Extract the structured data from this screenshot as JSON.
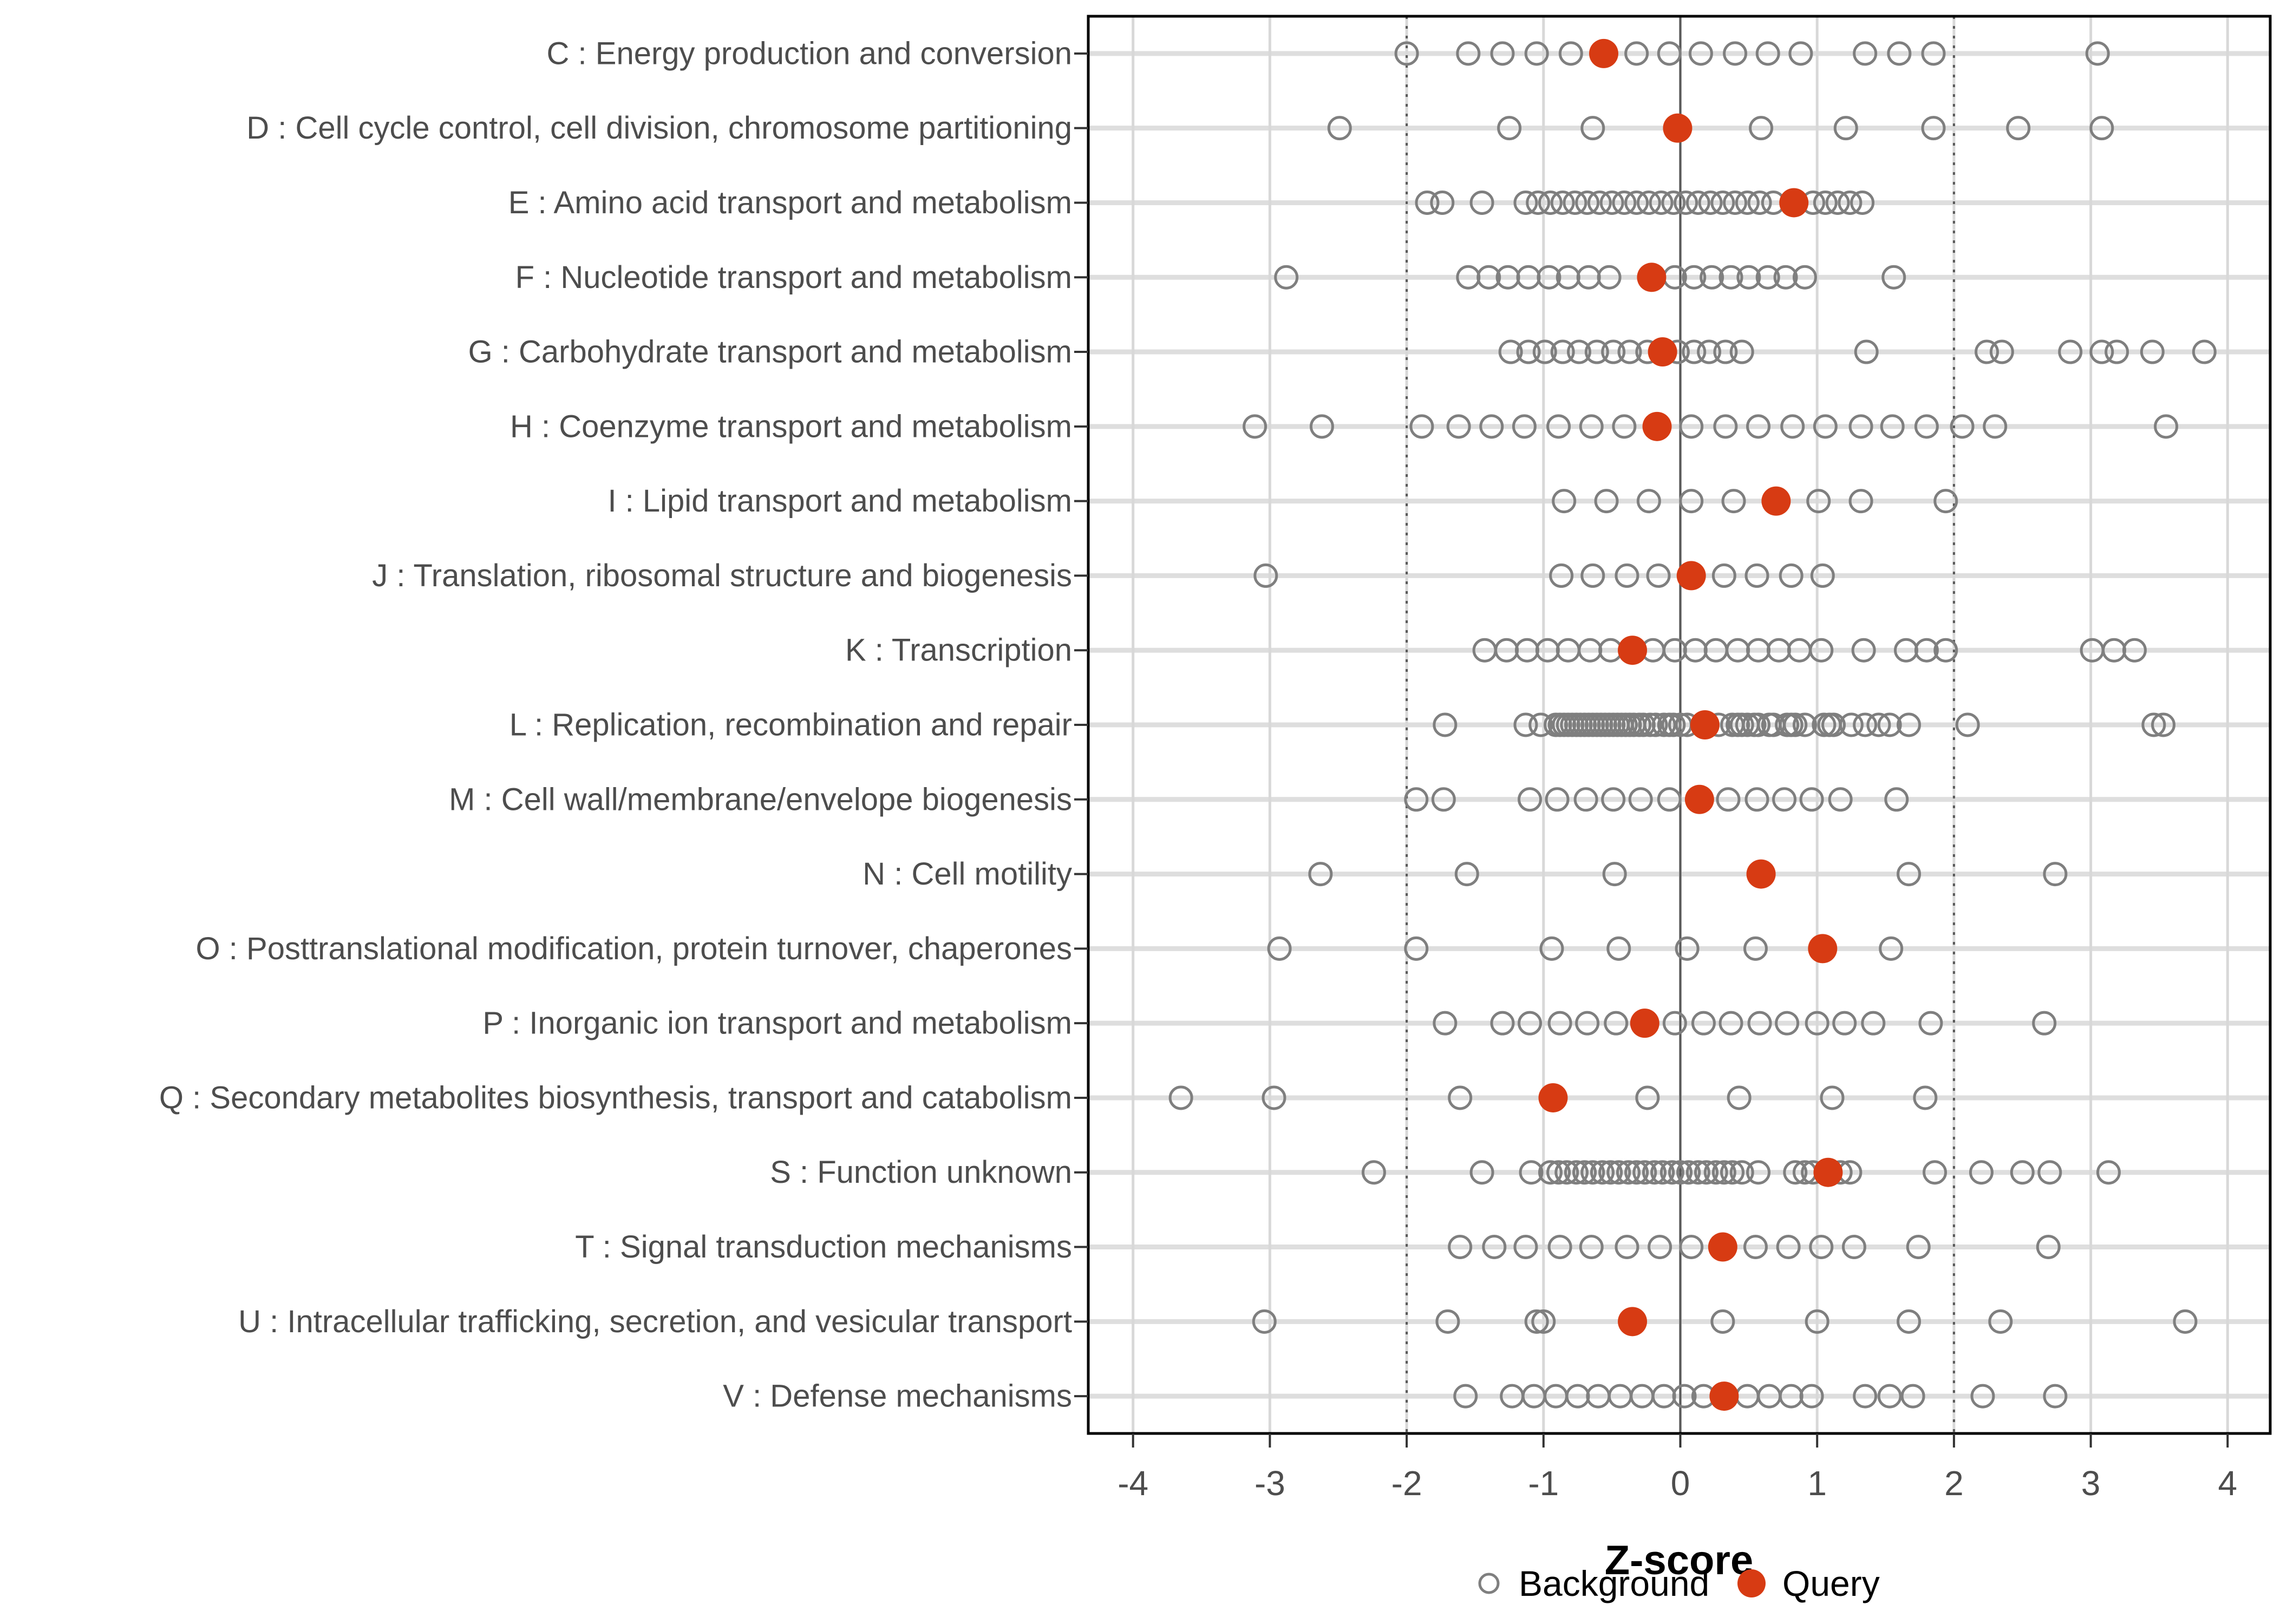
{
  "colors": {
    "query_red": "#D73B13",
    "background_point_gray": "#7F7F7F",
    "row_grid_gray": "#DEDEDE",
    "minor_grid_gray": "#D8D8D8",
    "reference_line_gray": "#595959",
    "axis_text_gray": "#4D4D4D",
    "panel_border_black": "#000000"
  },
  "chart_data": {
    "type": "scatter",
    "title": "",
    "xlabel": "Z-score",
    "ylabel": "",
    "xlim": [
      -4.33,
      4.31
    ],
    "x_ticks": [
      -4,
      -3,
      -2,
      -1,
      0,
      1,
      2,
      3,
      4
    ],
    "grid": true,
    "reference_lines": {
      "solid_at": 0,
      "dotted_at": [
        -2,
        2
      ]
    },
    "legend": [
      "Background",
      "Query"
    ],
    "legend_position": "bottom",
    "series_note": "background = open gray circles, query = filled red circle, one row per COG category",
    "categories": [
      {
        "code": "C",
        "label": "C : Energy production and conversion",
        "background": [
          -2.0,
          -1.55,
          -1.3,
          -1.05,
          -0.8,
          -0.32,
          -0.08,
          0.15,
          0.4,
          0.64,
          0.88,
          1.35,
          1.6,
          1.85,
          3.05
        ],
        "query": -0.56
      },
      {
        "code": "D",
        "label": "D : Cell cycle control, cell division, chromosome partitioning",
        "background": [
          -2.49,
          -1.25,
          -0.64,
          0.59,
          1.21,
          1.85,
          2.47,
          3.08
        ],
        "query": -0.02
      },
      {
        "code": "E",
        "label": "E : Amino acid transport and metabolism",
        "background": [
          -1.85,
          -1.74,
          -1.45,
          -1.13,
          -1.04,
          -0.95,
          -0.86,
          -0.77,
          -0.68,
          -0.59,
          -0.5,
          -0.41,
          -0.32,
          -0.23,
          -0.14,
          -0.05,
          0.04,
          0.13,
          0.22,
          0.31,
          0.4,
          0.49,
          0.58,
          0.68,
          0.97,
          1.06,
          1.15,
          1.24,
          1.33
        ],
        "query": 0.83
      },
      {
        "code": "F",
        "label": "F : Nucleotide transport and metabolism",
        "background": [
          -2.88,
          -1.55,
          -1.4,
          -1.26,
          -1.11,
          -0.96,
          -0.82,
          -0.67,
          -0.52,
          -0.04,
          0.1,
          0.23,
          0.37,
          0.5,
          0.64,
          0.77,
          0.91,
          1.56
        ],
        "query": -0.21
      },
      {
        "code": "G",
        "label": "G : Carbohydrate transport and metabolism",
        "background": [
          -1.24,
          -1.11,
          -0.99,
          -0.86,
          -0.74,
          -0.61,
          -0.49,
          -0.37,
          -0.24,
          -0.02,
          0.1,
          0.21,
          0.33,
          0.45,
          1.36,
          2.24,
          2.35,
          2.85,
          3.08,
          3.19,
          3.45,
          3.83
        ],
        "query": -0.13
      },
      {
        "code": "H",
        "label": "H : Coenzyme transport and metabolism",
        "background": [
          -3.11,
          -2.62,
          -1.89,
          -1.62,
          -1.38,
          -1.14,
          -0.89,
          -0.65,
          -0.41,
          0.08,
          0.33,
          0.57,
          0.82,
          1.06,
          1.32,
          1.55,
          1.8,
          2.06,
          2.3,
          3.55
        ],
        "query": -0.17
      },
      {
        "code": "I",
        "label": "I : Lipid transport and metabolism",
        "background": [
          -0.85,
          -0.54,
          -0.23,
          0.08,
          0.39,
          1.01,
          1.32,
          1.94
        ],
        "query": 0.7
      },
      {
        "code": "J",
        "label": "J : Translation, ribosomal structure and biogenesis",
        "background": [
          -3.03,
          -0.87,
          -0.64,
          -0.39,
          -0.16,
          0.32,
          0.56,
          0.81,
          1.04
        ],
        "query": 0.08
      },
      {
        "code": "K",
        "label": "K : Transcription",
        "background": [
          -1.43,
          -1.27,
          -1.12,
          -0.97,
          -0.82,
          -0.66,
          -0.51,
          -0.2,
          -0.04,
          0.11,
          0.26,
          0.42,
          0.57,
          0.72,
          0.87,
          1.03,
          1.34,
          1.65,
          1.8,
          1.94,
          3.01,
          3.17,
          3.32
        ],
        "query": -0.35
      },
      {
        "code": "L",
        "label": "L : Replication, recombination and repair",
        "background": [
          -1.72,
          -1.13,
          -1.02,
          -0.91,
          -0.88,
          -0.85,
          -0.82,
          -0.79,
          -0.76,
          -0.73,
          -0.7,
          -0.67,
          -0.64,
          -0.61,
          -0.58,
          -0.55,
          -0.52,
          -0.49,
          -0.46,
          -0.43,
          -0.4,
          -0.37,
          -0.34,
          -0.3,
          -0.27,
          -0.22,
          -0.18,
          -0.12,
          -0.08,
          -0.05,
          0.0,
          0.05,
          0.28,
          0.38,
          0.42,
          0.45,
          0.49,
          0.54,
          0.57,
          0.65,
          0.68,
          0.78,
          0.81,
          0.84,
          0.91,
          1.05,
          1.09,
          1.12,
          1.25,
          1.35,
          1.45,
          1.53,
          1.67,
          2.1,
          3.46,
          3.53
        ],
        "query": 0.18
      },
      {
        "code": "M",
        "label": "M : Cell wall/membrane/envelope biogenesis",
        "background": [
          -1.93,
          -1.73,
          -1.1,
          -0.9,
          -0.69,
          -0.49,
          -0.29,
          -0.08,
          0.35,
          0.56,
          0.76,
          0.96,
          1.17,
          1.58
        ],
        "query": 0.14
      },
      {
        "code": "N",
        "label": "N : Cell motility",
        "background": [
          -2.63,
          -1.56,
          -0.48,
          1.67,
          2.74
        ],
        "query": 0.59
      },
      {
        "code": "O",
        "label": "O : Posttranslational modification, protein turnover, chaperones",
        "background": [
          -2.93,
          -1.93,
          -0.94,
          -0.45,
          0.05,
          0.55,
          1.54
        ],
        "query": 1.04
      },
      {
        "code": "P",
        "label": "P : Inorganic ion transport and metabolism",
        "background": [
          -1.72,
          -1.3,
          -1.1,
          -0.88,
          -0.68,
          -0.47,
          -0.04,
          0.17,
          0.37,
          0.58,
          0.78,
          1.0,
          1.2,
          1.41,
          1.83,
          2.66
        ],
        "query": -0.26
      },
      {
        "code": "Q",
        "label": "Q : Secondary metabolites biosynthesis, transport and catabolism",
        "background": [
          -3.65,
          -2.97,
          -1.61,
          -0.24,
          0.43,
          1.11,
          1.79
        ],
        "query": -0.93
      },
      {
        "code": "S",
        "label": "S : Function unknown",
        "background": [
          -2.24,
          -1.45,
          -1.09,
          -0.95,
          -0.89,
          -0.83,
          -0.76,
          -0.7,
          -0.64,
          -0.57,
          -0.51,
          -0.45,
          -0.38,
          -0.32,
          -0.26,
          -0.19,
          -0.13,
          -0.06,
          0.0,
          0.06,
          0.13,
          0.19,
          0.26,
          0.32,
          0.38,
          0.45,
          0.57,
          0.84,
          0.91,
          0.97,
          1.17,
          1.24,
          1.86,
          2.2,
          2.5,
          2.7,
          3.13
        ],
        "query": 1.08
      },
      {
        "code": "T",
        "label": "T : Signal transduction mechanisms",
        "background": [
          -1.61,
          -1.36,
          -1.13,
          -0.88,
          -0.65,
          -0.39,
          -0.15,
          0.08,
          0.55,
          0.79,
          1.03,
          1.27,
          1.74,
          2.69
        ],
        "query": 0.31
      },
      {
        "code": "U",
        "label": "U : Intracellular trafficking, secretion, and vesicular transport",
        "background": [
          -3.04,
          -1.7,
          -1.05,
          -1.0,
          0.31,
          1.0,
          1.67,
          2.34,
          3.69
        ],
        "query": -0.35
      },
      {
        "code": "V",
        "label": "V : Defense mechanisms",
        "background": [
          -1.57,
          -1.23,
          -1.07,
          -0.91,
          -0.75,
          -0.6,
          -0.44,
          -0.28,
          -0.12,
          0.03,
          0.17,
          0.49,
          0.65,
          0.81,
          0.96,
          1.35,
          1.53,
          1.7,
          2.21,
          2.74
        ],
        "query": 0.32
      }
    ]
  }
}
